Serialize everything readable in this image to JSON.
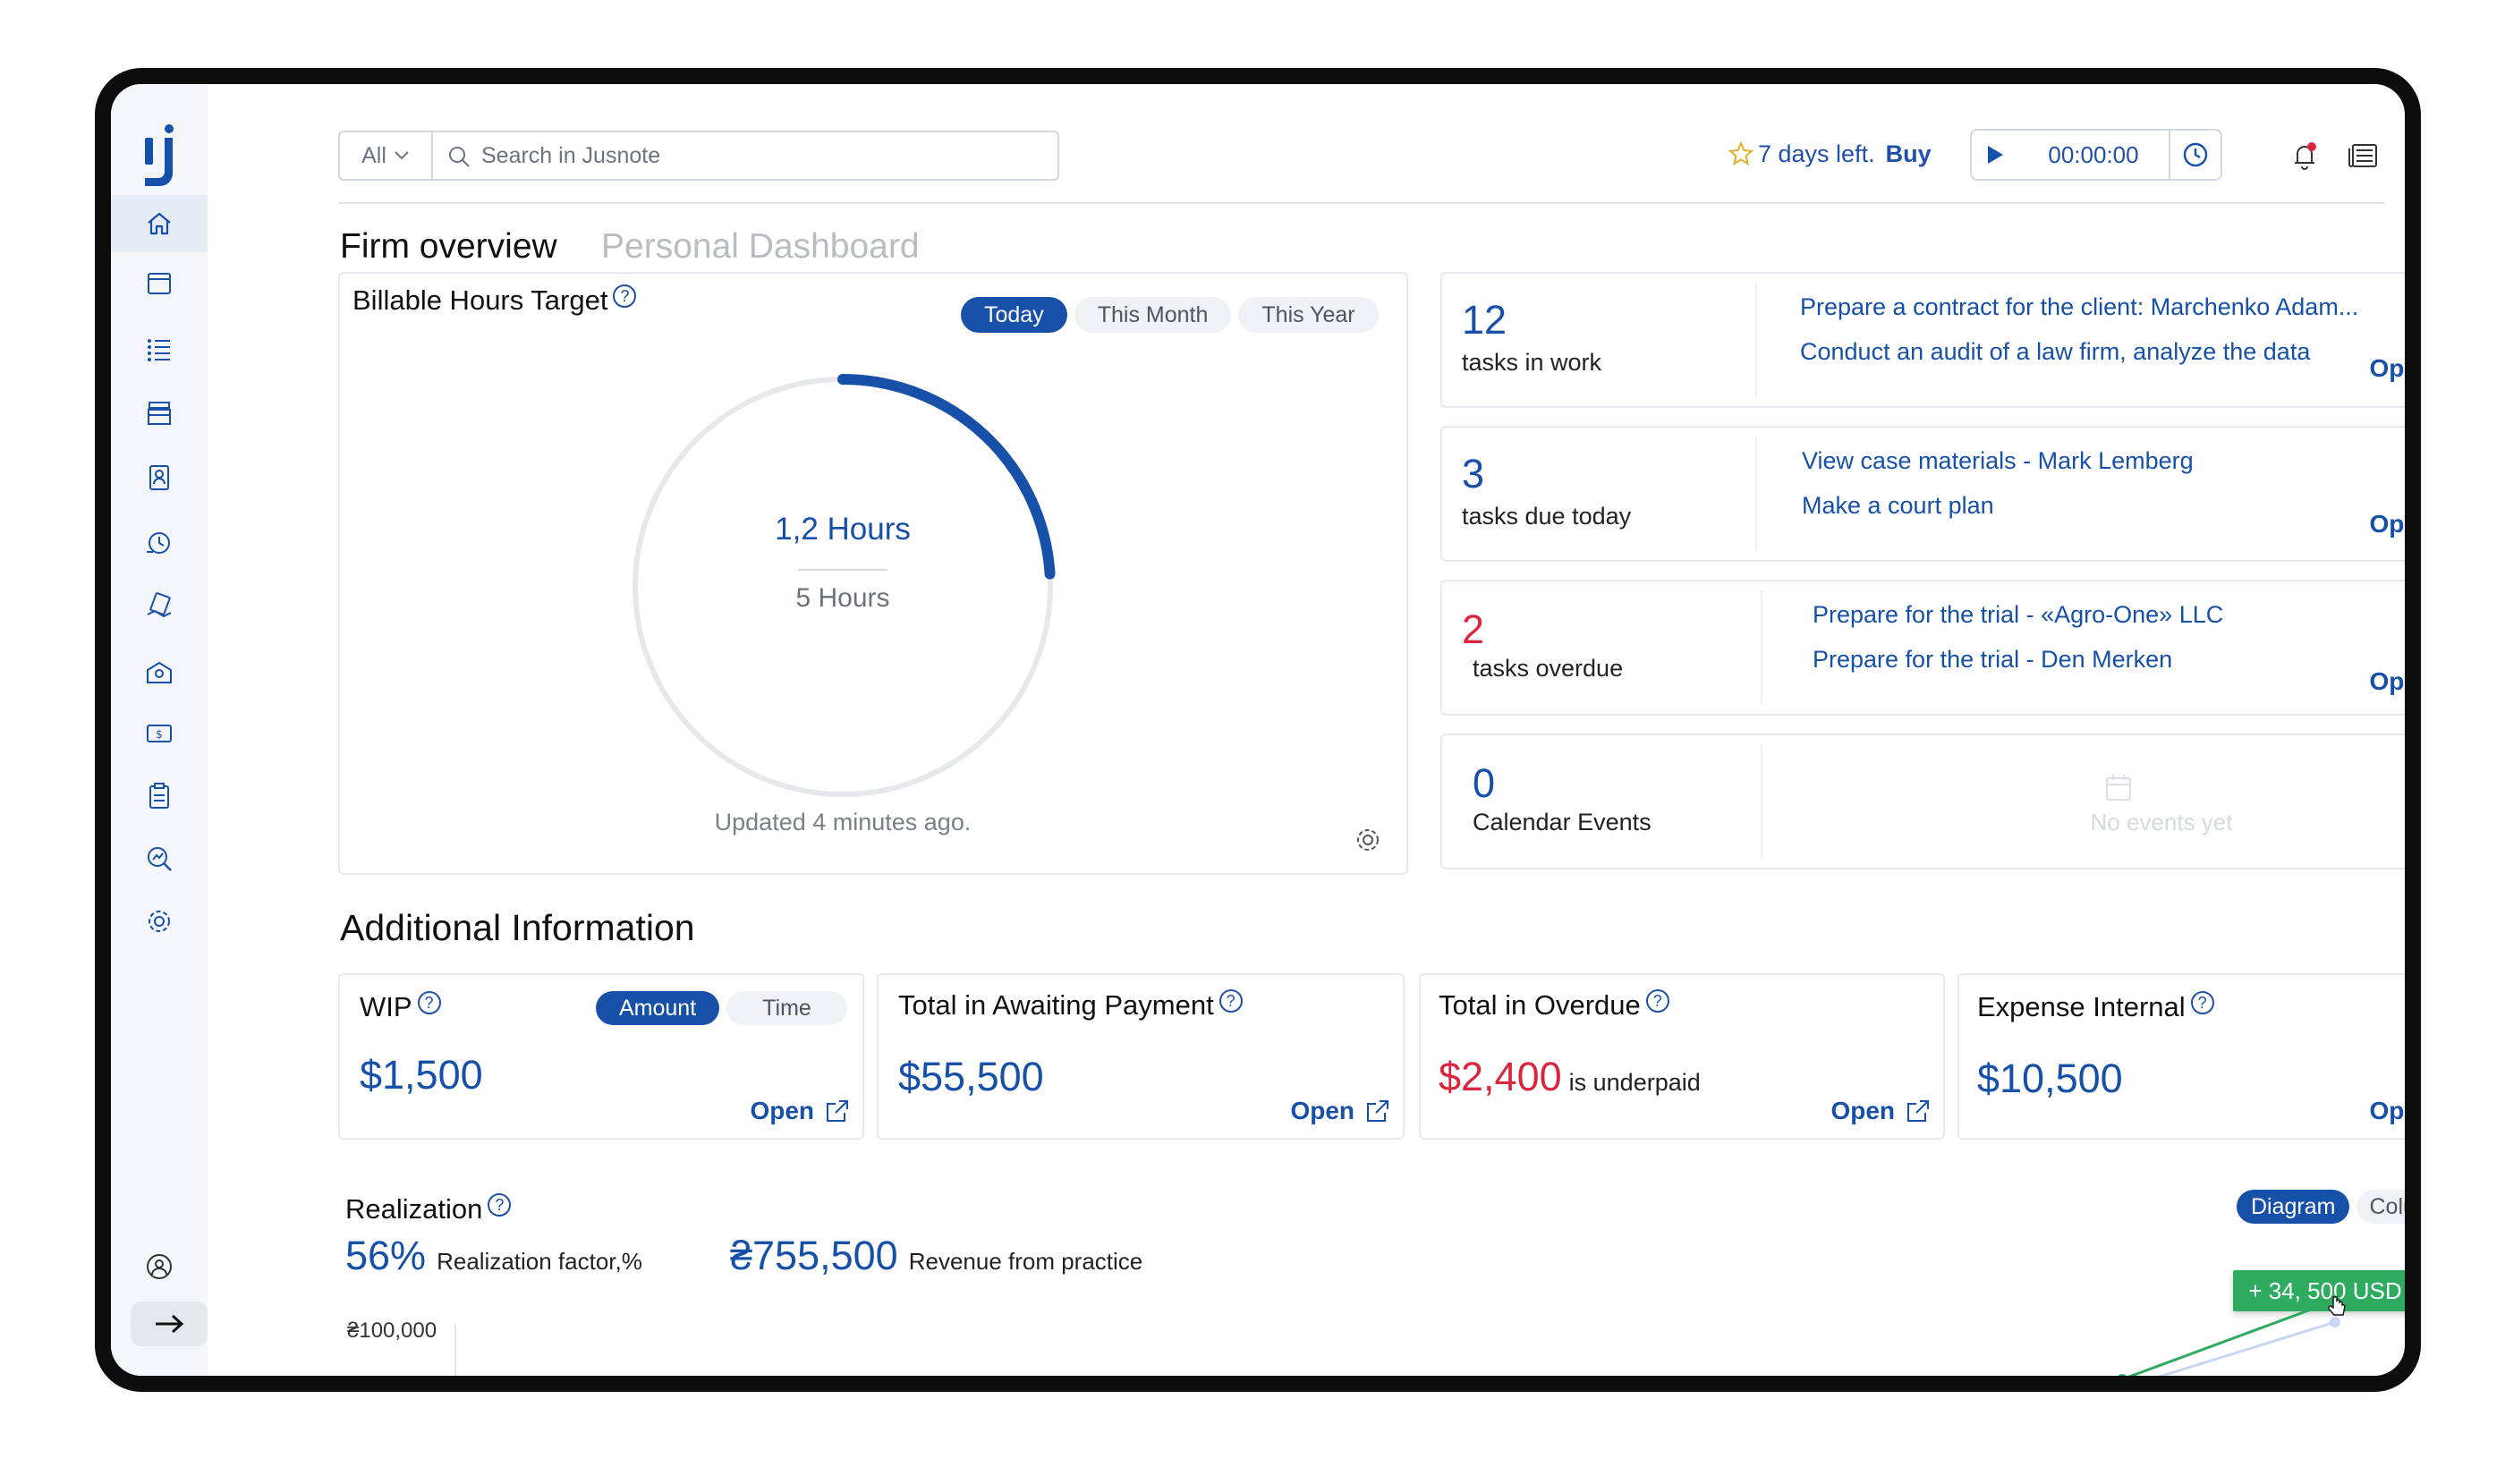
{
  "header": {
    "search_scope": "All",
    "search_placeholder": "Search in Jusnote",
    "trial_text": "7 days left.",
    "trial_cta": "Buy",
    "timer": "00:00:00"
  },
  "tabs": {
    "active": "Firm overview",
    "inactive": "Personal Dashboard"
  },
  "billable": {
    "title": "Billable Hours Target",
    "periods": [
      "Today",
      "This Month",
      "This Year"
    ],
    "value": "1,2 Hours",
    "target": "5 Hours",
    "progress": 0.24,
    "updated": "Updated 4 minutes ago."
  },
  "tasks": [
    {
      "count": "12",
      "label": "tasks in work",
      "items": [
        "Prepare a contract for the client: Marchenko Adam...",
        "Conduct an audit of a law firm, analyze the data"
      ],
      "open": "Open",
      "color": "#1650a8"
    },
    {
      "count": "3",
      "label": "tasks due today",
      "items": [
        "View case materials - Mark Lemberg",
        "Make a court plan"
      ],
      "open": "Open",
      "color": "#1650a8"
    },
    {
      "count": "2",
      "label": "tasks overdue",
      "items": [
        "Prepare for the trial - «Agro-One» LLC",
        "Prepare for the trial - Den Merken"
      ],
      "open": "Open",
      "color": "#d9263e"
    },
    {
      "count": "0",
      "label": "Calendar Events",
      "empty": "No events yet"
    }
  ],
  "additional": {
    "title": "Additional Information",
    "wip": {
      "title": "WIP",
      "toggle": [
        "Amount",
        "Time"
      ],
      "amount": "$1,500",
      "open": "Open"
    },
    "awaiting": {
      "title": "Total in Awaiting Payment",
      "amount": "$55,500",
      "open": "Open"
    },
    "overdue": {
      "title": "Total in Overdue",
      "amount": "$2,400",
      "suffix": "is underpaid",
      "open": "Open"
    },
    "expense": {
      "title": "Expense Internal",
      "amount": "$10,500",
      "open": "Open"
    }
  },
  "realization": {
    "title": "Realization",
    "toggle": [
      "Diagram",
      "Columns"
    ],
    "factor_value": "56%",
    "factor_label": "Realization factor,%",
    "revenue_value": "₴755,500",
    "revenue_label": "Revenue from practice",
    "tooltip": "+ 34, 500 USD"
  },
  "chart_data": {
    "type": "line",
    "y_tick_labels": [
      "₴100,000"
    ],
    "series": [
      {
        "color": "#2eab5f"
      },
      {
        "color": "#c7d6f3"
      }
    ]
  },
  "colors": {
    "primary": "#1650a8",
    "success": "#2eab5f",
    "danger": "#d9263e"
  }
}
